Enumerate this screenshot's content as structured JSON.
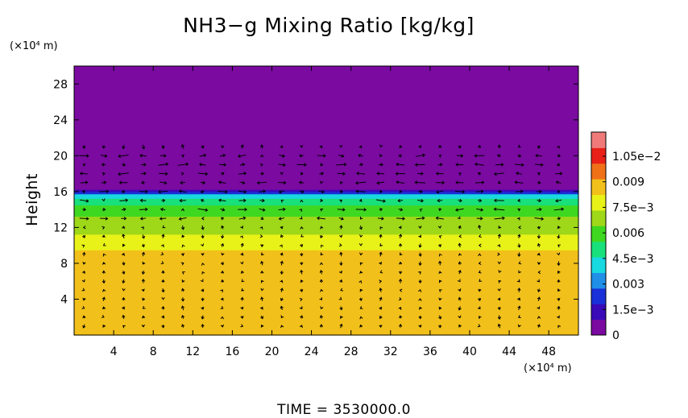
{
  "chart_data": {
    "type": "heatmap",
    "title": "NH3−g Mixing Ratio [kg/kg]",
    "ylabel": "Height",
    "x_unit": "(×10⁴ m)",
    "y_unit": "(×10⁴ m)",
    "footer": "TIME  =  3530000.0",
    "xlim": [
      0,
      51
    ],
    "ylim": [
      0,
      30
    ],
    "x_ticks": [
      4,
      8,
      12,
      16,
      20,
      24,
      28,
      32,
      36,
      40,
      44,
      48
    ],
    "x_tick_labels": [
      "4",
      "8",
      "12",
      "16",
      "20",
      "24",
      "28",
      "32",
      "36",
      "40",
      "44",
      "48"
    ],
    "y_ticks": [
      4,
      8,
      12,
      16,
      20,
      24,
      28
    ],
    "y_tick_labels": [
      "4",
      "8",
      "12",
      "16",
      "20",
      "24",
      "28"
    ],
    "colorbar": {
      "min": 0,
      "max": 0.0105,
      "tick_values": [
        0,
        0.0015,
        0.003,
        0.0045,
        0.006,
        0.0075,
        0.009,
        0.0105
      ],
      "tick_labels": [
        "0",
        "1.5e−3",
        "0.003",
        "4.5e−3",
        "0.006",
        "7.5e−3",
        "0.009",
        "1.05e−2"
      ]
    },
    "field_profile": [
      {
        "height": 0,
        "value": 0.008
      },
      {
        "height": 8.5,
        "value": 0.008
      },
      {
        "height": 9.5,
        "value": 0.0072
      },
      {
        "height": 11,
        "value": 0.0066
      },
      {
        "height": 12.5,
        "value": 0.006
      },
      {
        "height": 14,
        "value": 0.0052
      },
      {
        "height": 15,
        "value": 0.0044
      },
      {
        "height": 15.6,
        "value": 0.0034
      },
      {
        "height": 16.1,
        "value": 0.0012
      },
      {
        "height": 16.5,
        "value": 0.0
      },
      {
        "height": 30,
        "value": 0.0
      }
    ],
    "overlay": "wind vectors"
  },
  "colors": {
    "colormap": [
      "#7a0aa0",
      "#3a0ab8",
      "#1a30d8",
      "#1f8fe8",
      "#18d8e0",
      "#18e07a",
      "#3ed820",
      "#9ed818",
      "#e8f218",
      "#f2c01a",
      "#f07018",
      "#e82018",
      "#f07a7a"
    ]
  }
}
